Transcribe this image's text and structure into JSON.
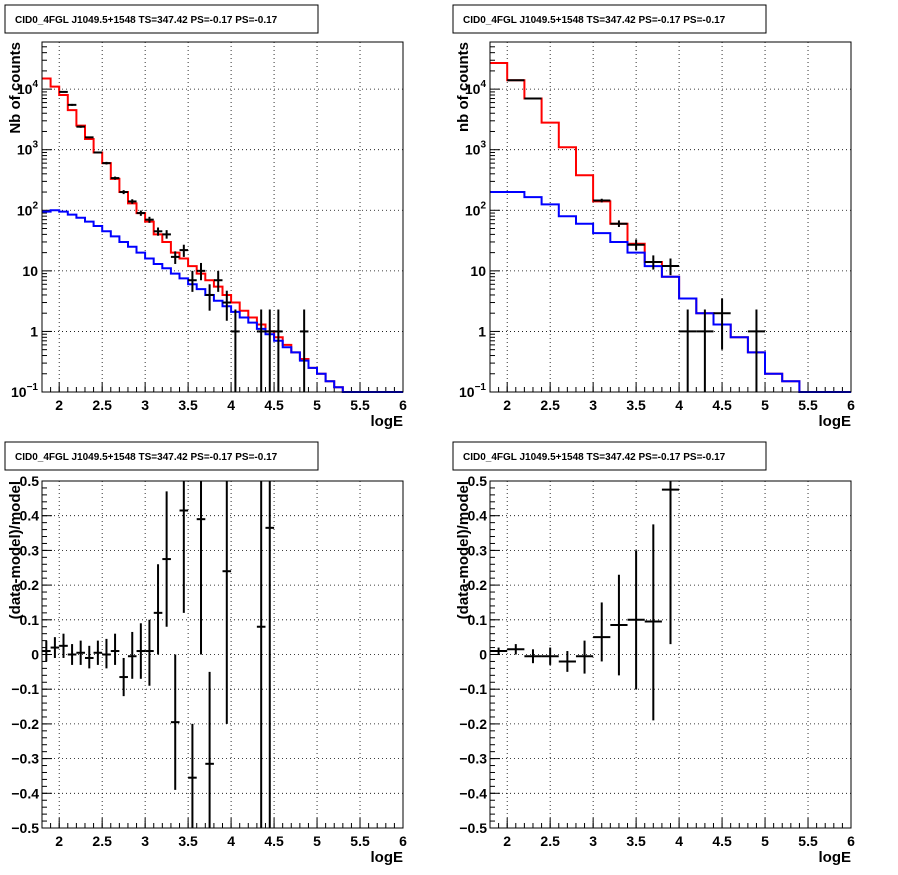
{
  "colors": {
    "total_model": "#ff0000",
    "source_model": "#0000ff",
    "data": "#000000",
    "grid": "#000000"
  },
  "panels": [
    {
      "title": "CID0_4FGL J1049.5+1548 TS=347.42 PS=-0.17 PS=-0.17",
      "chart_data": {
        "type": "line",
        "xlabel": "logE",
        "ylabel": "Nb of counts",
        "xlim": [
          1.8,
          6.0
        ],
        "ylim": [
          0.1,
          60000
        ],
        "log_y": true,
        "grid": true,
        "xticks": [
          "2",
          "2.5",
          "3",
          "3.5",
          "4",
          "4.5",
          "5",
          "5.5",
          "6"
        ],
        "yticks": [
          {
            "v": 0.1,
            "base": "10",
            "exp": "−1"
          },
          {
            "v": 1,
            "t": "1"
          },
          {
            "v": 10,
            "t": "10"
          },
          {
            "v": 100,
            "base": "10",
            "exp": "2"
          },
          {
            "v": 1000,
            "base": "10",
            "exp": "3"
          },
          {
            "v": 10000,
            "base": "10",
            "exp": "4"
          }
        ],
        "bin_width": 0.1,
        "series": [
          {
            "name": "",
            "role": "total",
            "x": [
              1.8,
              1.9,
              2.0,
              2.1,
              2.2,
              2.3,
              2.4,
              2.5,
              2.6,
              2.7,
              2.8,
              2.9,
              3.0,
              3.1,
              3.2,
              3.3,
              3.4,
              3.5,
              3.6,
              3.7,
              3.8,
              3.9,
              4.0,
              4.1,
              4.2,
              4.3,
              4.4,
              4.5,
              4.6,
              4.7,
              4.8,
              4.9,
              5.0,
              5.1,
              5.2,
              5.3,
              5.4,
              5.5,
              5.6,
              5.7,
              5.8,
              5.9
            ],
            "y": [
              15000,
              11000,
              8000,
              4500,
              2500,
              1500,
              900,
              600,
              330,
              200,
              130,
              90,
              65,
              40,
              30,
              20,
              16,
              12,
              9,
              7,
              5.5,
              4,
              3,
              2.2,
              1.7,
              1.3,
              1,
              0.8,
              0.6,
              0.45,
              0.35,
              0.25,
              0.2,
              0.15,
              0.12,
              0.1,
              0.1,
              0.1,
              0.1,
              0.1,
              0.1,
              0.1
            ]
          },
          {
            "name": "",
            "role": "source",
            "x": [
              1.8,
              1.9,
              2.0,
              2.1,
              2.2,
              2.3,
              2.4,
              2.5,
              2.6,
              2.7,
              2.8,
              2.9,
              3.0,
              3.1,
              3.2,
              3.3,
              3.4,
              3.5,
              3.6,
              3.7,
              3.8,
              3.9,
              4.0,
              4.1,
              4.2,
              4.3,
              4.4,
              4.5,
              4.6,
              4.7,
              4.8,
              4.9,
              5.0,
              5.1,
              5.2,
              5.3,
              5.4,
              5.5,
              5.6,
              5.7,
              5.8,
              5.9
            ],
            "y": [
              95,
              100,
              95,
              85,
              75,
              65,
              55,
              45,
              37,
              30,
              25,
              20,
              16,
              13,
              11,
              9,
              7.5,
              6,
              5,
              4,
              3.2,
              2.6,
              2.1,
              1.7,
              1.4,
              1.1,
              0.9,
              0.7,
              0.55,
              0.45,
              0.33,
              0.25,
              0.2,
              0.15,
              0.12,
              0.1,
              0.1,
              0.1,
              0.1,
              0.1,
              0.1,
              0.1
            ]
          }
        ],
        "points": [
          {
            "x": 2.05,
            "y": 9000,
            "lo": 8800,
            "hi": 9200
          },
          {
            "x": 2.15,
            "y": 5500,
            "lo": 5300,
            "hi": 5700
          },
          {
            "x": 2.25,
            "y": 2400,
            "lo": 2300,
            "hi": 2500
          },
          {
            "x": 2.35,
            "y": 1600,
            "lo": 1550,
            "hi": 1650
          },
          {
            "x": 2.45,
            "y": 900,
            "lo": 870,
            "hi": 930
          },
          {
            "x": 2.55,
            "y": 600,
            "lo": 570,
            "hi": 630
          },
          {
            "x": 2.65,
            "y": 340,
            "lo": 320,
            "hi": 360
          },
          {
            "x": 2.75,
            "y": 200,
            "lo": 185,
            "hi": 215
          },
          {
            "x": 2.85,
            "y": 140,
            "lo": 128,
            "hi": 152
          },
          {
            "x": 2.95,
            "y": 90,
            "lo": 81,
            "hi": 99
          },
          {
            "x": 3.05,
            "y": 70,
            "lo": 62,
            "hi": 78
          },
          {
            "x": 3.15,
            "y": 45,
            "lo": 38,
            "hi": 52
          },
          {
            "x": 3.25,
            "y": 40,
            "lo": 34,
            "hi": 47
          },
          {
            "x": 3.35,
            "y": 17,
            "lo": 13,
            "hi": 21
          },
          {
            "x": 3.45,
            "y": 22,
            "lo": 17,
            "hi": 27
          },
          {
            "x": 3.55,
            "y": 7,
            "lo": 4.5,
            "hi": 10
          },
          {
            "x": 3.65,
            "y": 10,
            "lo": 7,
            "hi": 13.5
          },
          {
            "x": 3.75,
            "y": 4,
            "lo": 2.2,
            "hi": 6
          },
          {
            "x": 3.85,
            "y": 7,
            "lo": 4.5,
            "hi": 10
          },
          {
            "x": 3.95,
            "y": 3,
            "lo": 1.5,
            "hi": 4.7
          },
          {
            "x": 4.05,
            "y": 1,
            "lo": 0.1,
            "hi": 2.3
          },
          {
            "x": 4.35,
            "y": 1,
            "lo": 0.1,
            "hi": 2.3
          },
          {
            "x": 4.45,
            "y": 1,
            "lo": 0.1,
            "hi": 2.3
          },
          {
            "x": 4.55,
            "y": 1,
            "lo": 0.1,
            "hi": 2.3
          },
          {
            "x": 4.85,
            "y": 1,
            "lo": 0.1,
            "hi": 2.3
          }
        ]
      }
    },
    {
      "title": "CID0_4FGL J1049.5+1548 TS=347.42 PS=-0.17 PS=-0.17",
      "chart_data": {
        "type": "line",
        "xlabel": "logE",
        "ylabel": "nb of counts",
        "xlim": [
          1.8,
          6.0
        ],
        "ylim": [
          0.1,
          60000
        ],
        "log_y": true,
        "grid": true,
        "xticks": [
          "2",
          "2.5",
          "3",
          "3.5",
          "4",
          "4.5",
          "5",
          "5.5",
          "6"
        ],
        "yticks": [
          {
            "v": 0.1,
            "base": "10",
            "exp": "−1"
          },
          {
            "v": 1,
            "t": "1"
          },
          {
            "v": 10,
            "t": "10"
          },
          {
            "v": 100,
            "base": "10",
            "exp": "2"
          },
          {
            "v": 1000,
            "base": "10",
            "exp": "3"
          },
          {
            "v": 10000,
            "base": "10",
            "exp": "4"
          }
        ],
        "bin_width": 0.2,
        "series": [
          {
            "name": "",
            "role": "total",
            "x": [
              1.8,
              2.0,
              2.2,
              2.4,
              2.6,
              2.8,
              3.0,
              3.2,
              3.4,
              3.6,
              3.8,
              4.0,
              4.2,
              4.4,
              4.6,
              4.8,
              5.0,
              5.2,
              5.4,
              5.6,
              5.8
            ],
            "y": [
              27000,
              14000,
              7000,
              2800,
              1100,
              380,
              140,
              60,
              28,
              14,
              8,
              3.5,
              2,
              1.3,
              0.8,
              0.45,
              0.2,
              0.15,
              0.1,
              0.1,
              0.1
            ]
          },
          {
            "name": "",
            "role": "source",
            "x": [
              1.8,
              2.0,
              2.2,
              2.4,
              2.6,
              2.8,
              3.0,
              3.2,
              3.4,
              3.6,
              3.8,
              4.0,
              4.2,
              4.4,
              4.6,
              4.8,
              5.0,
              5.2,
              5.4,
              5.6,
              5.8
            ],
            "y": [
              200,
              200,
              165,
              125,
              80,
              60,
              42,
              30,
              20,
              12,
              8,
              3.5,
              2,
              1.3,
              0.8,
              0.45,
              0.2,
              0.15,
              0.1,
              0.1,
              0.1
            ]
          }
        ],
        "points": [
          {
            "x": 2.1,
            "y": 14000,
            "lo": 13800,
            "hi": 14200
          },
          {
            "x": 2.3,
            "y": 7000,
            "lo": 6900,
            "hi": 7100
          },
          {
            "x": 3.1,
            "y": 145,
            "lo": 135,
            "hi": 155
          },
          {
            "x": 3.3,
            "y": 60,
            "lo": 53,
            "hi": 68
          },
          {
            "x": 3.5,
            "y": 27,
            "lo": 22,
            "hi": 33
          },
          {
            "x": 3.7,
            "y": 14,
            "lo": 10.5,
            "hi": 18
          },
          {
            "x": 3.9,
            "y": 12,
            "lo": 8.5,
            "hi": 16
          },
          {
            "x": 4.1,
            "y": 1,
            "lo": 0.1,
            "hi": 2.3
          },
          {
            "x": 4.3,
            "y": 1,
            "lo": 0.1,
            "hi": 2.3
          },
          {
            "x": 4.5,
            "y": 2,
            "lo": 0.5,
            "hi": 3.5
          },
          {
            "x": 4.9,
            "y": 1,
            "lo": 0.1,
            "hi": 2.3
          }
        ]
      }
    },
    {
      "title": "CID0_4FGL J1049.5+1548 TS=347.42 PS=-0.17 PS=-0.17",
      "chart_data": {
        "type": "scatter",
        "xlabel": "logE",
        "ylabel": "(data-model)/model",
        "xlim": [
          1.8,
          6.0
        ],
        "ylim": [
          -0.5,
          0.5
        ],
        "log_y": false,
        "grid": true,
        "xticks": [
          "2",
          "2.5",
          "3",
          "3.5",
          "4",
          "4.5",
          "5",
          "5.5",
          "6"
        ],
        "yticks": [
          "−0.5",
          "−0.4",
          "−0.3",
          "−0.2",
          "−0.1",
          "0",
          "0.1",
          "0.2",
          "0.3",
          "0.4",
          "0.5"
        ],
        "bin_width": 0.1,
        "series": [],
        "points": [
          {
            "x": 1.85,
            "y": 0.01,
            "lo": -0.02,
            "hi": 0.04
          },
          {
            "x": 1.95,
            "y": 0.02,
            "lo": -0.01,
            "hi": 0.05
          },
          {
            "x": 2.05,
            "y": 0.025,
            "lo": -0.01,
            "hi": 0.06
          },
          {
            "x": 2.15,
            "y": 0.0,
            "lo": -0.03,
            "hi": 0.03
          },
          {
            "x": 2.25,
            "y": 0.005,
            "lo": -0.03,
            "hi": 0.04
          },
          {
            "x": 2.35,
            "y": -0.01,
            "lo": -0.04,
            "hi": 0.025
          },
          {
            "x": 2.45,
            "y": 0.005,
            "lo": -0.03,
            "hi": 0.04
          },
          {
            "x": 2.55,
            "y": 0.0,
            "lo": -0.04,
            "hi": 0.045
          },
          {
            "x": 2.65,
            "y": 0.01,
            "lo": -0.03,
            "hi": 0.06
          },
          {
            "x": 2.75,
            "y": -0.065,
            "lo": -0.12,
            "hi": -0.01
          },
          {
            "x": 2.85,
            "y": -0.005,
            "lo": -0.07,
            "hi": 0.065
          },
          {
            "x": 2.95,
            "y": 0.01,
            "lo": -0.07,
            "hi": 0.09
          },
          {
            "x": 3.05,
            "y": 0.01,
            "lo": -0.09,
            "hi": 0.1
          },
          {
            "x": 3.15,
            "y": 0.12,
            "lo": 0.0,
            "hi": 0.26
          },
          {
            "x": 3.25,
            "y": 0.275,
            "lo": 0.08,
            "hi": 0.47
          },
          {
            "x": 3.35,
            "y": -0.195,
            "lo": -0.39,
            "hi": 0.0
          },
          {
            "x": 3.45,
            "y": 0.415,
            "lo": 0.12,
            "hi": 0.5
          },
          {
            "x": 3.55,
            "y": -0.355,
            "lo": -0.5,
            "hi": -0.2
          },
          {
            "x": 3.65,
            "y": 0.39,
            "lo": 0.0,
            "hi": 0.5
          },
          {
            "x": 3.75,
            "y": -0.315,
            "lo": -0.5,
            "hi": -0.05
          },
          {
            "x": 3.95,
            "y": 0.24,
            "lo": -0.2,
            "hi": 0.5
          },
          {
            "x": 4.35,
            "y": 0.08,
            "lo": -0.5,
            "hi": 0.5
          },
          {
            "x": 4.45,
            "y": 0.365,
            "lo": -0.5,
            "hi": 0.5
          }
        ]
      }
    },
    {
      "title": "CID0_4FGL J1049.5+1548 TS=347.42 PS=-0.17 PS=-0.17",
      "chart_data": {
        "type": "scatter",
        "xlabel": "logE",
        "ylabel": "(data-model)/model",
        "xlim": [
          1.8,
          6.0
        ],
        "ylim": [
          -0.5,
          0.5
        ],
        "log_y": false,
        "grid": true,
        "xticks": [
          "2",
          "2.5",
          "3",
          "3.5",
          "4",
          "4.5",
          "5",
          "5.5",
          "6"
        ],
        "yticks": [
          "−0.5",
          "−0.4",
          "−0.3",
          "−0.2",
          "−0.1",
          "0",
          "0.1",
          "0.2",
          "0.3",
          "0.4",
          "0.5"
        ],
        "bin_width": 0.2,
        "series": [],
        "points": [
          {
            "x": 1.9,
            "y": 0.01,
            "lo": 0.0,
            "hi": 0.02
          },
          {
            "x": 2.1,
            "y": 0.015,
            "lo": 0.0,
            "hi": 0.03
          },
          {
            "x": 2.3,
            "y": -0.005,
            "lo": -0.025,
            "hi": 0.015
          },
          {
            "x": 2.5,
            "y": -0.005,
            "lo": -0.03,
            "hi": 0.02
          },
          {
            "x": 2.7,
            "y": -0.02,
            "lo": -0.05,
            "hi": 0.01
          },
          {
            "x": 2.9,
            "y": -0.005,
            "lo": -0.055,
            "hi": 0.04
          },
          {
            "x": 3.1,
            "y": 0.05,
            "lo": -0.02,
            "hi": 0.15
          },
          {
            "x": 3.3,
            "y": 0.085,
            "lo": -0.06,
            "hi": 0.23
          },
          {
            "x": 3.5,
            "y": 0.1,
            "lo": -0.1,
            "hi": 0.3
          },
          {
            "x": 3.7,
            "y": 0.095,
            "lo": -0.19,
            "hi": 0.375
          },
          {
            "x": 3.9,
            "y": 0.475,
            "lo": 0.03,
            "hi": 0.5
          }
        ]
      }
    }
  ]
}
